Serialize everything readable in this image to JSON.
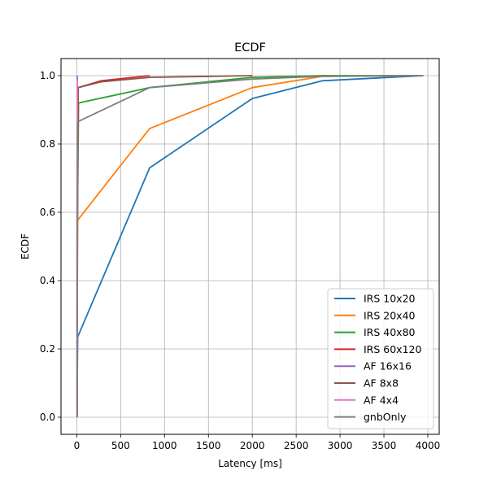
{
  "chart_data": {
    "type": "line",
    "title": "ECDF",
    "xlabel": "Latency [ms]",
    "ylabel": "ECDF",
    "xlim": [
      -180,
      4130
    ],
    "ylim": [
      -0.05,
      1.05
    ],
    "xticks": [
      0,
      500,
      1000,
      1500,
      2000,
      2500,
      3000,
      3500,
      4000
    ],
    "xtick_labels": [
      "0",
      "500",
      "1000",
      "1500",
      "2000",
      "2500",
      "3000",
      "3500",
      "4000"
    ],
    "yticks": [
      0.0,
      0.2,
      0.4,
      0.6,
      0.8,
      1.0
    ],
    "ytick_labels": [
      "0.0",
      "0.2",
      "0.4",
      "0.6",
      "0.8",
      "1.0"
    ],
    "grid": true,
    "legend_position": "lower-right",
    "series": [
      {
        "name": "IRS 10x20",
        "color": "#1f77b4",
        "x": [
          5,
          5,
          10,
          830,
          2000,
          2800,
          3950
        ],
        "y": [
          0.0,
          0.1,
          0.235,
          0.73,
          0.933,
          0.985,
          1.0
        ]
      },
      {
        "name": "IRS 20x40",
        "color": "#ff7f0e",
        "x": [
          5,
          5,
          10,
          830,
          2000,
          2800,
          3950
        ],
        "y": [
          0.0,
          0.3,
          0.577,
          0.845,
          0.965,
          0.998,
          1.0
        ]
      },
      {
        "name": "IRS 40x80",
        "color": "#2ca02c",
        "x": [
          5,
          5,
          20,
          830,
          2000,
          2800,
          3950
        ],
        "y": [
          0.0,
          0.5,
          0.92,
          0.965,
          0.995,
          1.0,
          1.0
        ]
      },
      {
        "name": "IRS 60x120",
        "color": "#d62728",
        "x": [
          5,
          5,
          15,
          280,
          830
        ],
        "y": [
          0.0,
          0.5,
          0.965,
          0.985,
          1.0
        ]
      },
      {
        "name": "AF 16x16",
        "color": "#9467bd",
        "x": [
          3,
          3,
          5
        ],
        "y": [
          0.0,
          0.5,
          1.0
        ]
      },
      {
        "name": "AF 8x8",
        "color": "#8c564b",
        "x": [
          5,
          5,
          15,
          280,
          830,
          2000
        ],
        "y": [
          0.0,
          0.5,
          0.965,
          0.982,
          0.995,
          1.0
        ]
      },
      {
        "name": "AF 4x4",
        "color": "#e377c2",
        "x": [
          3,
          3,
          5
        ],
        "y": [
          0.0,
          0.5,
          0.99
        ]
      },
      {
        "name": "gnbOnly",
        "color": "#7f7f7f",
        "x": [
          5,
          5,
          10,
          830,
          2000,
          2800,
          3950
        ],
        "y": [
          0.0,
          0.3,
          0.865,
          0.965,
          0.99,
          0.998,
          1.0
        ]
      }
    ]
  }
}
